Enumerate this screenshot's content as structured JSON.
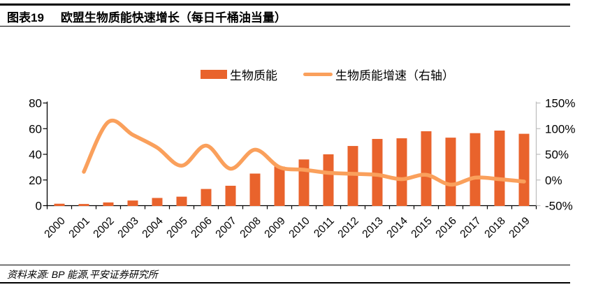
{
  "header": {
    "tag": "图表19",
    "title": "欧盟生物质能快速增长（每日千桶油当量）"
  },
  "legend": {
    "bar_label": "生物质能",
    "line_label": "生物质能增速（右轴）"
  },
  "footer": {
    "source": "资料来源: BP 能源,平安证券研究所"
  },
  "colors": {
    "bar": "#E9632C",
    "line": "#FAA05C",
    "axis": "#000000",
    "right_axis": "#BFBFBF",
    "text": "#000000"
  },
  "chart_data": {
    "type": "bar",
    "title": "欧盟生物质能快速增长（每日千桶油当量）",
    "categories": [
      "2000",
      "2001",
      "2002",
      "2003",
      "2004",
      "2005",
      "2006",
      "2007",
      "2008",
      "2009",
      "2010",
      "2011",
      "2012",
      "2013",
      "2014",
      "2015",
      "2016",
      "2017",
      "2018",
      "2019"
    ],
    "series": [
      {
        "name": "生物质能",
        "type": "bar",
        "axis": "left",
        "values": [
          1.5,
          1.3,
          2.5,
          4,
          6,
          7,
          13,
          15.5,
          25,
          30.5,
          36,
          40,
          46.5,
          52,
          52.5,
          58,
          53,
          56.5,
          58.5,
          56
        ]
      },
      {
        "name": "生物质能增速（右轴）",
        "type": "line",
        "axis": "right",
        "unit": "%",
        "start_category": "2001",
        "values": [
          16,
          113,
          88,
          63,
          28,
          67,
          22,
          59,
          25,
          20,
          14,
          12,
          10,
          1.5,
          10,
          -9,
          4.5,
          1.5,
          -3
        ]
      }
    ],
    "left_axis": {
      "ticks": [
        0,
        20,
        40,
        60,
        80
      ],
      "labels": [
        "0",
        "20",
        "40",
        "60",
        "80"
      ],
      "range": [
        0,
        80
      ]
    },
    "right_axis": {
      "ticks": [
        -50,
        0,
        50,
        100,
        150
      ],
      "labels": [
        "-50%",
        "0%",
        "50%",
        "100%",
        "150%"
      ],
      "range": [
        -50,
        150
      ]
    },
    "grid": false,
    "legend_position": "top"
  }
}
